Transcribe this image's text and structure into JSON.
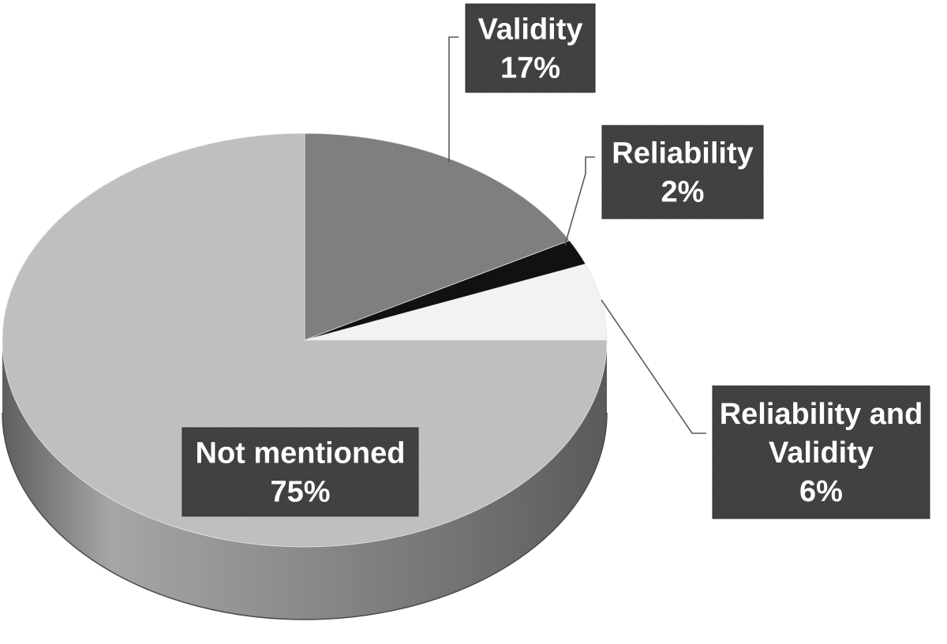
{
  "chart_data": {
    "type": "pie",
    "style": "3d",
    "title": "",
    "slices": [
      {
        "label": "Validity",
        "value": 17,
        "value_label": "17%",
        "color": "#7f7f7f"
      },
      {
        "label": "Reliability",
        "value": 2,
        "value_label": "2%",
        "color": "#111111"
      },
      {
        "label": "Reliability and Validity",
        "value": 6,
        "value_label": "6%",
        "color": "#f2f2f2"
      },
      {
        "label": "Not mentioned",
        "value": 75,
        "value_label": "75%",
        "color": "#bfbfbf"
      }
    ],
    "label_box_color": "#3f3f3f",
    "leader_line_color": "#595959",
    "side_color": "#8c8c8c"
  }
}
